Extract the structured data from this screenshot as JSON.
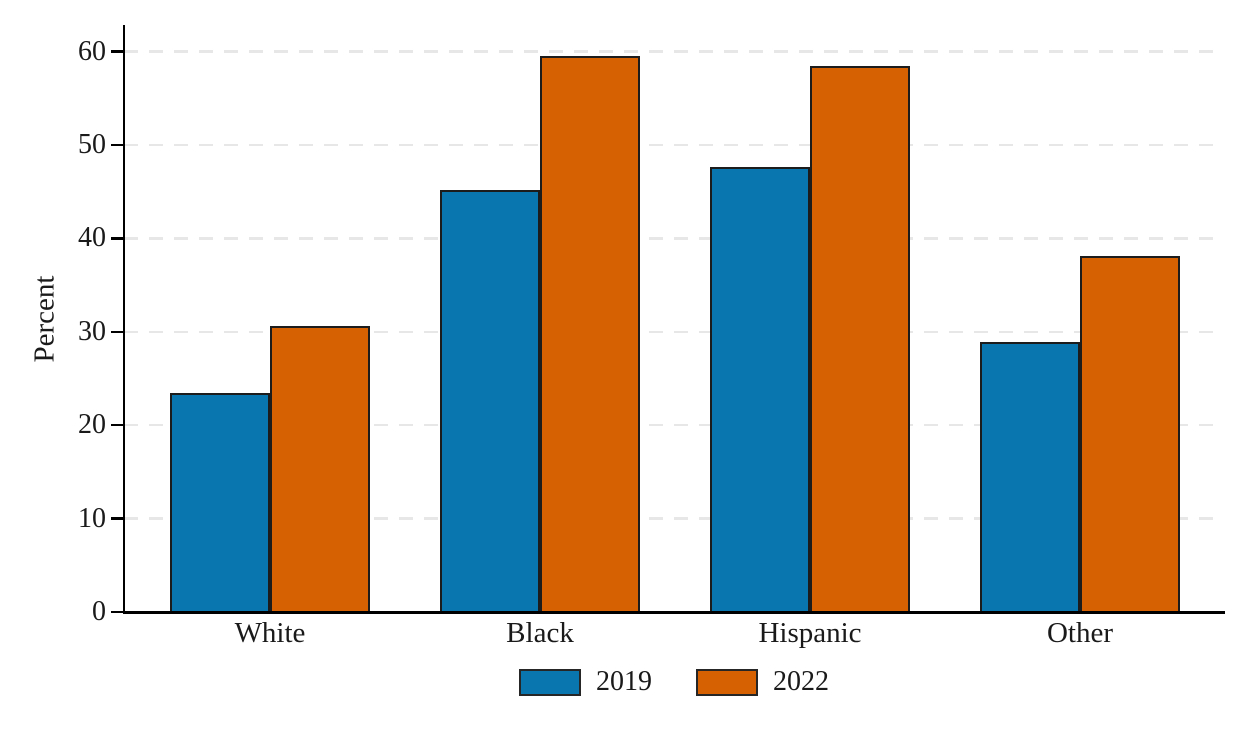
{
  "chart_data": {
    "type": "bar",
    "title": "",
    "categories": [
      "White",
      "Black",
      "Hispanic",
      "Other"
    ],
    "series": [
      {
        "name": "2019",
        "color": "#0a76af",
        "values": [
          23.5,
          45.2,
          47.6,
          28.9
        ]
      },
      {
        "name": "2022",
        "color": "#d56103",
        "values": [
          30.6,
          59.5,
          58.5,
          38.1
        ]
      }
    ],
    "xlabel": "",
    "ylabel": "Percent",
    "ylim": [
      0,
      62.8
    ],
    "yticks": [
      0,
      10,
      20,
      30,
      40,
      50,
      60
    ],
    "grid": "horizontal-dashed",
    "legend_position": "bottom-center"
  },
  "colors": {
    "axis": "#000000",
    "bar_border": "#1c1c1c",
    "gridline": "#e7e7e7",
    "text": "#1a1a1a",
    "background": "#ffffff"
  }
}
